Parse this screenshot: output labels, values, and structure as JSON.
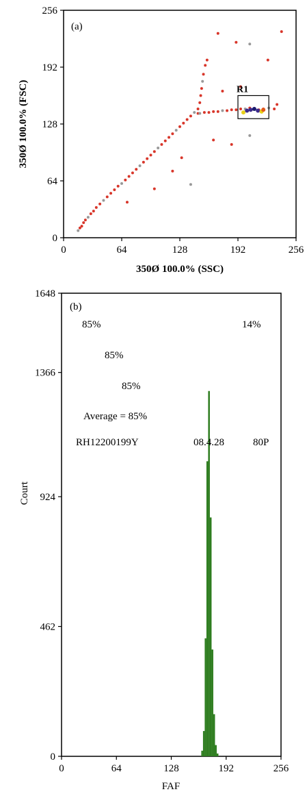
{
  "chart_data": [
    {
      "type": "scatter",
      "panel_label": "(a)",
      "xlabel": "350Ø 100.0% (SSC)",
      "ylabel": "350Ø 100.0% (FSC)",
      "xlim": [
        0,
        256
      ],
      "ylim": [
        0,
        256
      ],
      "xticks": [
        "0",
        "64",
        "128",
        "192",
        "256"
      ],
      "yticks": [
        "0",
        "64",
        "128",
        "192",
        "256"
      ],
      "gate": {
        "label": "R1",
        "x": [
          192,
          226
        ],
        "y": [
          134,
          160
        ]
      },
      "series": [
        {
          "points": [
            [
              16,
              8
            ],
            [
              18,
              11
            ],
            [
              20,
              13
            ],
            [
              22,
              17
            ],
            [
              24,
              20
            ],
            [
              27,
              23
            ],
            [
              30,
              27
            ],
            [
              33,
              30
            ],
            [
              36,
              34
            ],
            [
              40,
              38
            ],
            [
              44,
              42
            ],
            [
              48,
              46
            ],
            [
              52,
              50
            ],
            [
              56,
              54
            ],
            [
              60,
              58
            ],
            [
              64,
              61
            ],
            [
              68,
              65
            ],
            [
              72,
              69
            ],
            [
              76,
              73
            ],
            [
              80,
              77
            ],
            [
              84,
              81
            ],
            [
              88,
              85
            ],
            [
              92,
              89
            ],
            [
              96,
              93
            ],
            [
              100,
              97
            ],
            [
              104,
              101
            ],
            [
              108,
              105
            ],
            [
              112,
              109
            ],
            [
              116,
              113
            ],
            [
              120,
              117
            ],
            [
              124,
              121
            ],
            [
              128,
              125
            ],
            [
              132,
              129
            ],
            [
              136,
              133
            ],
            [
              140,
              137
            ],
            [
              144,
              141
            ],
            [
              148,
              145
            ],
            [
              150,
              152
            ],
            [
              151,
              160
            ],
            [
              152,
              168
            ],
            [
              153,
              176
            ],
            [
              154,
              184
            ],
            [
              156,
              194
            ],
            [
              158,
              200
            ],
            [
              148,
              140
            ],
            [
              150,
              140
            ],
            [
              155,
              141
            ],
            [
              160,
              141
            ],
            [
              165,
              142
            ],
            [
              170,
              142
            ],
            [
              175,
              143
            ],
            [
              180,
              143
            ],
            [
              185,
              144
            ],
            [
              190,
              144
            ],
            [
              195,
              145
            ],
            [
              200,
              145
            ],
            [
              205,
              146
            ],
            [
              210,
              145
            ],
            [
              215,
              144
            ],
            [
              220,
              145
            ],
            [
              226,
              146
            ],
            [
              232,
              145
            ],
            [
              240,
              232
            ],
            [
              170,
              230
            ],
            [
              190,
              220
            ],
            [
              205,
              218
            ],
            [
              225,
              200
            ],
            [
              235,
              150
            ],
            [
              165,
              110
            ],
            [
              185,
              105
            ],
            [
              205,
              115
            ],
            [
              100,
              55
            ],
            [
              120,
              75
            ],
            [
              130,
              90
            ],
            [
              70,
              40
            ],
            [
              140,
              60
            ],
            [
              175,
              165
            ],
            [
              195,
              170
            ]
          ]
        },
        {
          "name": "",
          "points": [
            [
              198,
              141
            ],
            [
              202,
              143
            ],
            [
              206,
              144
            ],
            [
              210,
              145
            ],
            [
              214,
              143
            ],
            [
              218,
              142
            ],
            [
              220,
              144
            ]
          ]
        }
      ]
    },
    {
      "type": "bar",
      "panel_label": "(b)",
      "xlabel": "FAF",
      "ylabel": "Court",
      "xlim": [
        0,
        256
      ],
      "ylim": [
        0,
        1648
      ],
      "xticks": [
        "0",
        "64",
        "128",
        "192",
        "256"
      ],
      "yticks": [
        "0",
        "462",
        "924",
        "1366",
        "1648"
      ],
      "annotations": {
        "pct_left_1": "85%",
        "pct_right": "14%",
        "pct_left_2": "85%",
        "pct_left_3": "85%",
        "average": "Average = 85%",
        "sample_id": "RH12200199Y",
        "date": "08.4.28",
        "code": "80P"
      },
      "histogram": {
        "x": [
          162,
          164,
          166,
          168,
          170,
          172,
          174,
          176,
          178,
          180,
          182,
          184
        ],
        "values": [
          0,
          20,
          90,
          420,
          1050,
          1300,
          850,
          380,
          150,
          40,
          10,
          0
        ]
      }
    }
  ]
}
